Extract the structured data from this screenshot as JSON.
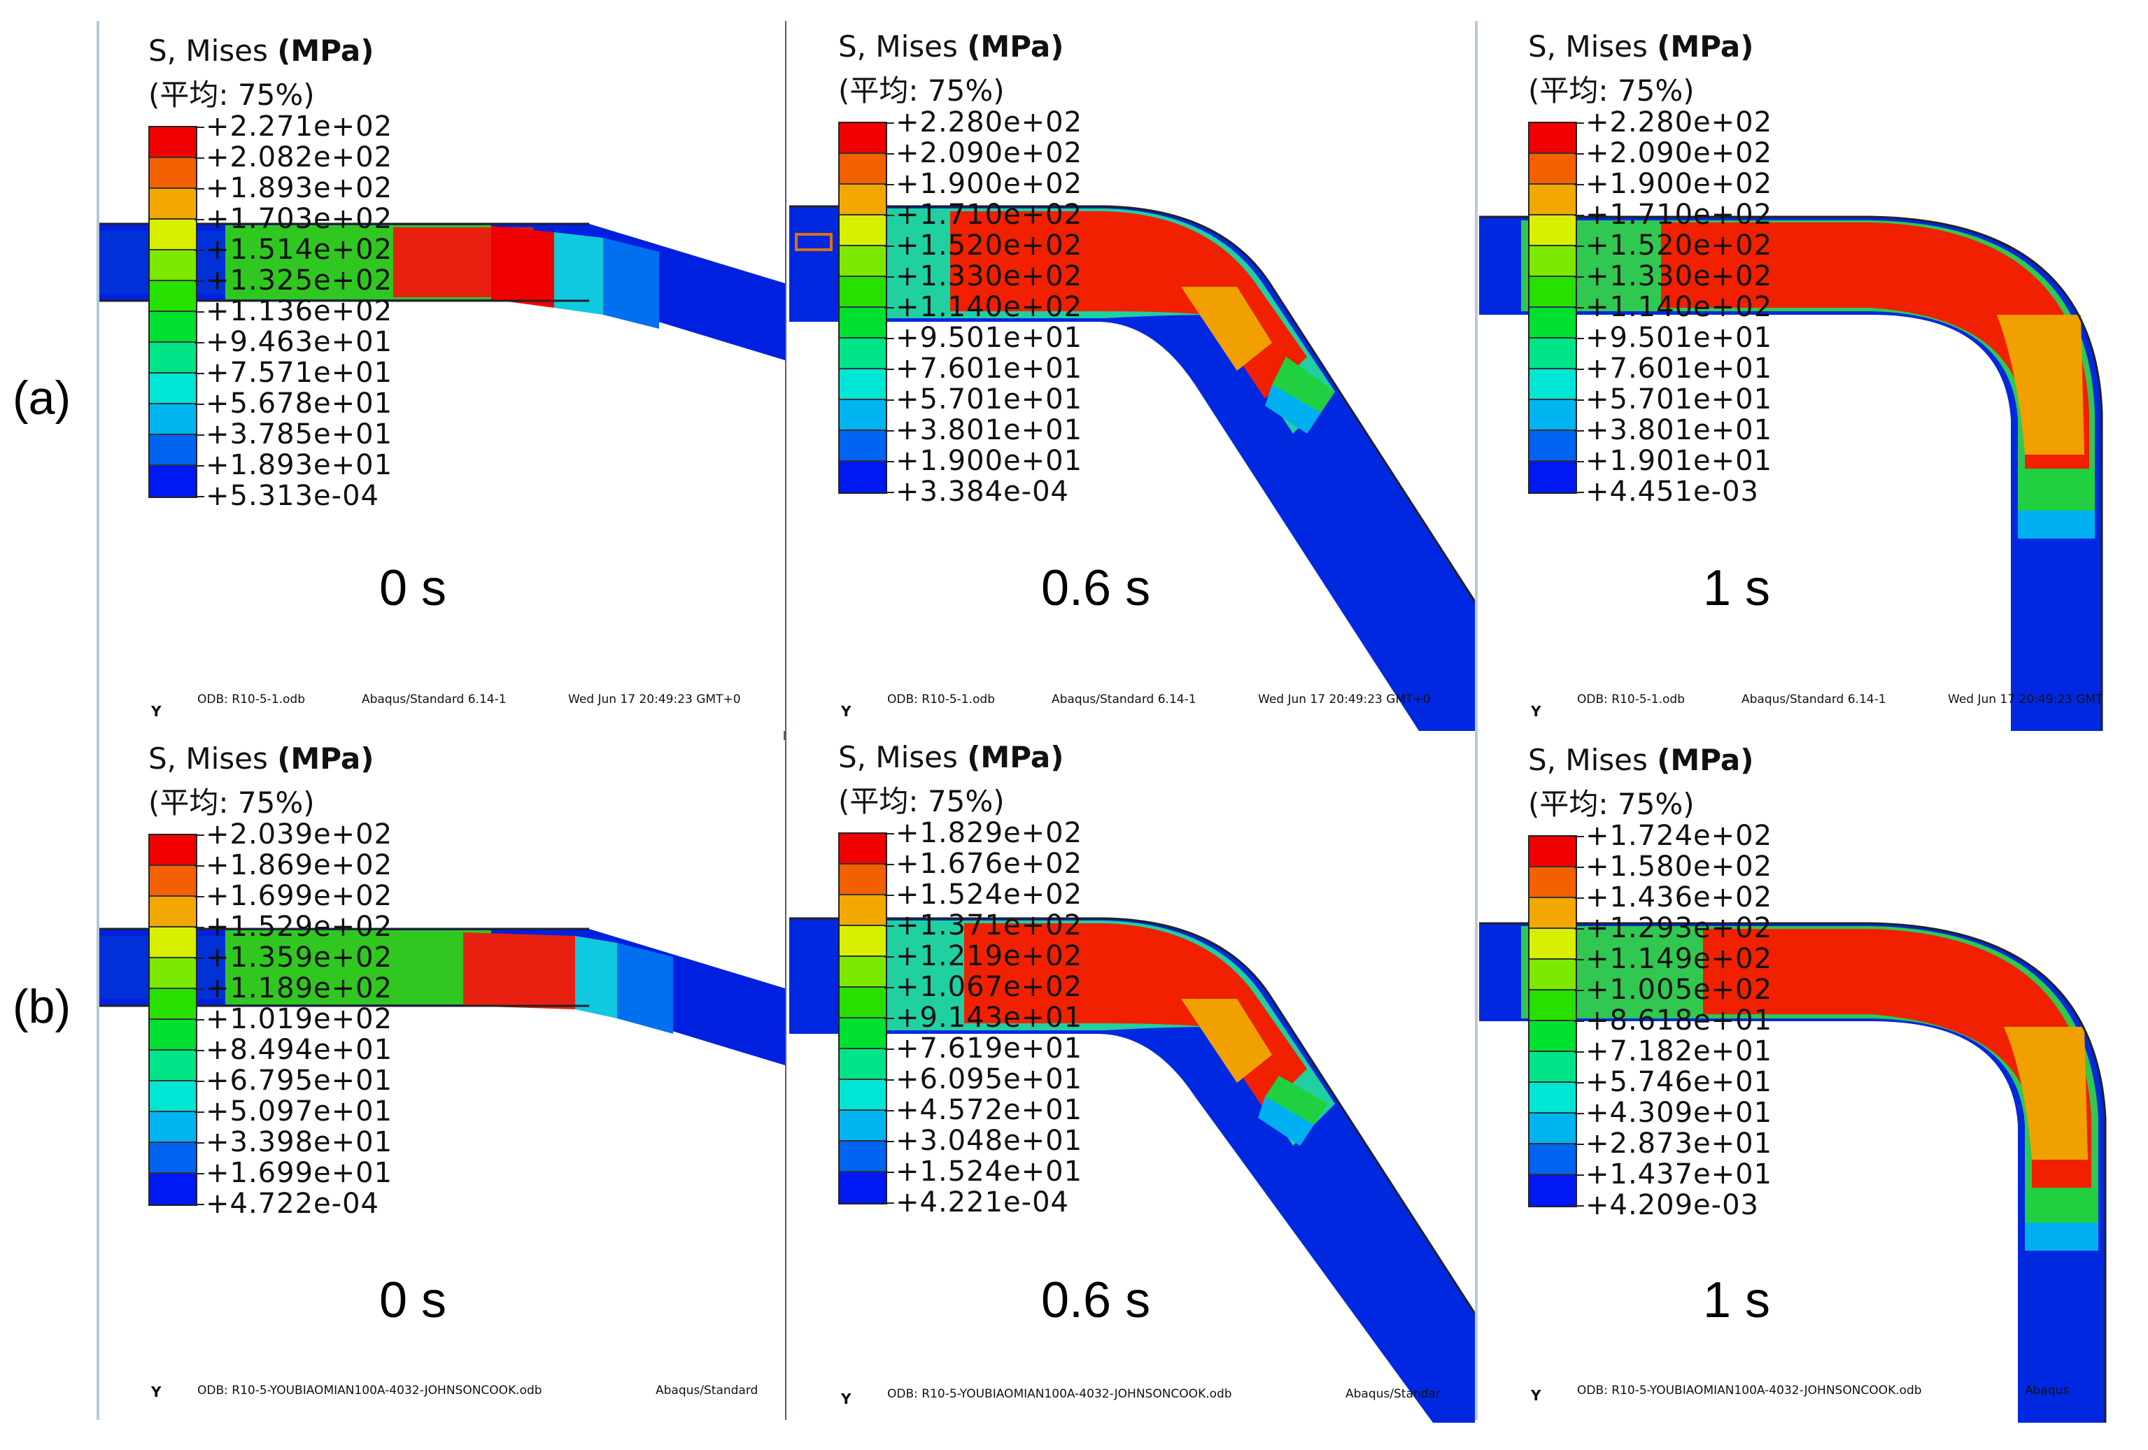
{
  "row_labels": [
    "(a)",
    "(b)"
  ],
  "legend_colors": [
    "#f20000",
    "#f26000",
    "#f2a800",
    "#d8f000",
    "#7de800",
    "#28e000",
    "#00e030",
    "#00e488",
    "#00e6d4",
    "#00b4f0",
    "#0064f0",
    "#0018f2"
  ],
  "panels": [
    {
      "title": "S, Mises",
      "unit": "(MPa)",
      "avg": "(平均: 75%)",
      "values": [
        "+2.271e+02",
        "+2.082e+02",
        "+1.893e+02",
        "+1.703e+02",
        "+1.514e+02",
        "+1.325e+02",
        "+1.136e+02",
        "+9.463e+01",
        "+7.571e+01",
        "+5.678e+01",
        "+3.785e+01",
        "+1.893e+01",
        "+5.313e-04"
      ],
      "time": "0 s",
      "footer": [
        "ODB: R10-5-1.odb",
        "Abaqus/Standard 6.14-1",
        "Wed Jun 17 20:49:23 GMT+0"
      ],
      "axis": "Y"
    },
    {
      "title": "S, Mises",
      "unit": "(MPa)",
      "avg": "(平均: 75%)",
      "values": [
        "+2.280e+02",
        "+2.090e+02",
        "+1.900e+02",
        "+1.710e+02",
        "+1.520e+02",
        "+1.330e+02",
        "+1.140e+02",
        "+9.501e+01",
        "+7.601e+01",
        "+5.701e+01",
        "+3.801e+01",
        "+1.900e+01",
        "+3.384e-04"
      ],
      "time": "0.6 s",
      "footer": [
        "ODB: R10-5-1.odb",
        "Abaqus/Standard 6.14-1",
        "Wed Jun 17 20:49:23 GMT+0"
      ],
      "axis": "Y"
    },
    {
      "title": "S, Mises",
      "unit": "(MPa)",
      "avg": "(平均: 75%)",
      "values": [
        "+2.280e+02",
        "+2.090e+02",
        "+1.900e+02",
        "+1.710e+02",
        "+1.520e+02",
        "+1.330e+02",
        "+1.140e+02",
        "+9.501e+01",
        "+7.601e+01",
        "+5.701e+01",
        "+3.801e+01",
        "+1.901e+01",
        "+4.451e-03"
      ],
      "time": "1 s",
      "footer": [
        "ODB: R10-5-1.odb",
        "Abaqus/Standard 6.14-1",
        "Wed Jun 17 20:49:23 GMT"
      ],
      "axis": "Y"
    },
    {
      "title": "S, Mises",
      "unit": "(MPa)",
      "avg": "(平均: 75%)",
      "values": [
        "+2.039e+02",
        "+1.869e+02",
        "+1.699e+02",
        "+1.529e+02",
        "+1.359e+02",
        "+1.189e+02",
        "+1.019e+02",
        "+8.494e+01",
        "+6.795e+01",
        "+5.097e+01",
        "+3.398e+01",
        "+1.699e+01",
        "+4.722e-04"
      ],
      "time": "0 s",
      "footer": [
        "ODB: R10-5-YOUBIAOMIAN100A-4032-JOHNSONCOOK.odb",
        "Abaqus/Standard"
      ],
      "axis": "Y"
    },
    {
      "title": "S, Mises",
      "unit": "(MPa)",
      "avg": "(平均: 75%)",
      "values": [
        "+1.829e+02",
        "+1.676e+02",
        "+1.524e+02",
        "+1.371e+02",
        "+1.219e+02",
        "+1.067e+02",
        "+9.143e+01",
        "+7.619e+01",
        "+6.095e+01",
        "+4.572e+01",
        "+3.048e+01",
        "+1.524e+01",
        "+4.221e-04"
      ],
      "time": "0.6 s",
      "footer": [
        "ODB: R10-5-YOUBIAOMIAN100A-4032-JOHNSONCOOK.odb",
        "Abaqus/Standar"
      ],
      "axis": "Y"
    },
    {
      "title": "S, Mises",
      "unit": "(MPa)",
      "avg": "(平均: 75%)",
      "values": [
        "+1.724e+02",
        "+1.580e+02",
        "+1.436e+02",
        "+1.293e+02",
        "+1.149e+02",
        "+1.005e+02",
        "+8.618e+01",
        "+7.182e+01",
        "+5.746e+01",
        "+4.309e+01",
        "+2.873e+01",
        "+1.437e+01",
        "+4.209e-03"
      ],
      "time": "1 s",
      "footer": [
        "ODB: R10-5-YOUBIAOMIAN100A-4032-JOHNSONCOOK.odb",
        "Abaqus"
      ],
      "axis": "Y"
    }
  ]
}
